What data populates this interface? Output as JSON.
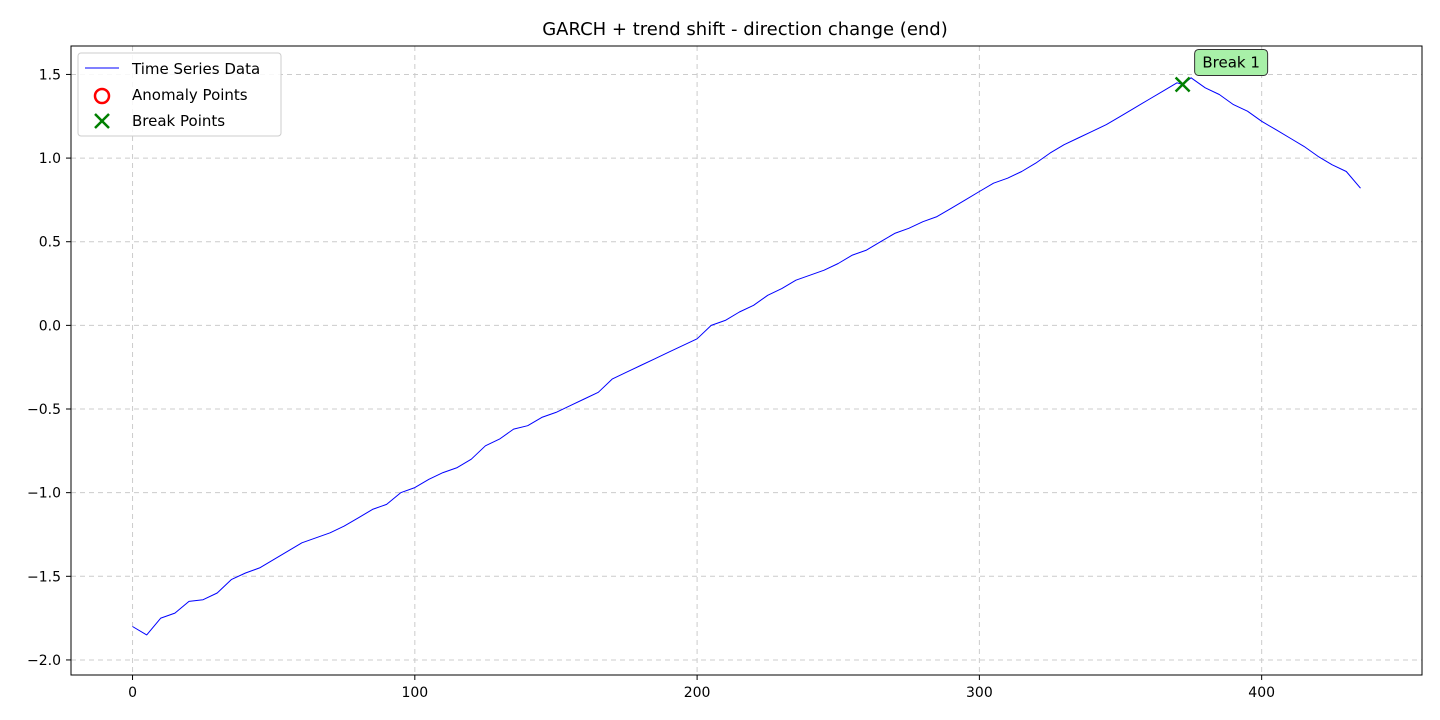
{
  "chart_data": {
    "type": "line",
    "title": "GARCH + trend shift - direction change (end)",
    "xlabel": "",
    "ylabel": "",
    "xlim": [
      -21.8,
      456.8
    ],
    "ylim": [
      -2.09,
      1.67
    ],
    "xticks": [
      0,
      100,
      200,
      300,
      400
    ],
    "yticks": [
      -2.0,
      -1.5,
      -1.0,
      -0.5,
      0.0,
      0.5,
      1.0,
      1.5
    ],
    "xtick_labels": [
      "0",
      "100",
      "200",
      "300",
      "400"
    ],
    "ytick_labels": [
      "−2.0",
      "−1.5",
      "−1.0",
      "−0.5",
      "0.0",
      "0.5",
      "1.0",
      "1.5"
    ],
    "grid": true,
    "legend_position": "upper-left",
    "legend": [
      "Time Series Data",
      "Anomaly Points",
      "Break Points"
    ],
    "series": [
      {
        "name": "Time Series Data",
        "color": "#0000ff",
        "x": [
          0,
          5,
          10,
          15,
          20,
          25,
          30,
          35,
          40,
          45,
          50,
          55,
          60,
          65,
          70,
          75,
          80,
          85,
          90,
          95,
          100,
          105,
          110,
          115,
          120,
          125,
          130,
          135,
          140,
          145,
          150,
          155,
          160,
          165,
          170,
          175,
          180,
          185,
          190,
          195,
          200,
          205,
          210,
          215,
          220,
          225,
          230,
          235,
          240,
          245,
          250,
          255,
          260,
          265,
          270,
          275,
          280,
          285,
          290,
          295,
          300,
          305,
          310,
          315,
          320,
          325,
          330,
          335,
          340,
          345,
          350,
          355,
          360,
          365,
          370,
          372,
          375,
          380,
          385,
          390,
          395,
          400,
          405,
          410,
          415,
          420,
          425,
          430,
          435
        ],
        "y": [
          -1.8,
          -1.85,
          -1.75,
          -1.72,
          -1.65,
          -1.64,
          -1.6,
          -1.52,
          -1.48,
          -1.45,
          -1.4,
          -1.35,
          -1.3,
          -1.27,
          -1.24,
          -1.2,
          -1.15,
          -1.1,
          -1.07,
          -1.0,
          -0.97,
          -0.92,
          -0.88,
          -0.85,
          -0.8,
          -0.72,
          -0.68,
          -0.62,
          -0.6,
          -0.55,
          -0.52,
          -0.48,
          -0.44,
          -0.4,
          -0.32,
          -0.28,
          -0.24,
          -0.2,
          -0.16,
          -0.12,
          -0.08,
          0.0,
          0.03,
          0.08,
          0.12,
          0.18,
          0.22,
          0.27,
          0.3,
          0.33,
          0.37,
          0.42,
          0.45,
          0.5,
          0.55,
          0.58,
          0.62,
          0.65,
          0.7,
          0.75,
          0.8,
          0.85,
          0.88,
          0.92,
          0.97,
          1.03,
          1.08,
          1.12,
          1.16,
          1.2,
          1.25,
          1.3,
          1.35,
          1.4,
          1.45,
          1.44,
          1.48,
          1.42,
          1.38,
          1.32,
          1.28,
          1.22,
          1.17,
          1.12,
          1.07,
          1.01,
          0.96,
          0.92,
          0.82
        ]
      }
    ],
    "anomaly_points": [],
    "break_points": [
      {
        "x": 372,
        "y": 1.44,
        "label": "Break 1",
        "color": "#008000"
      }
    ]
  },
  "colors": {
    "line": "#0000ff",
    "anomaly": "#ff0000",
    "break": "#008000",
    "grid": "#cccccc",
    "annot_fill": "#a8f0a8"
  }
}
